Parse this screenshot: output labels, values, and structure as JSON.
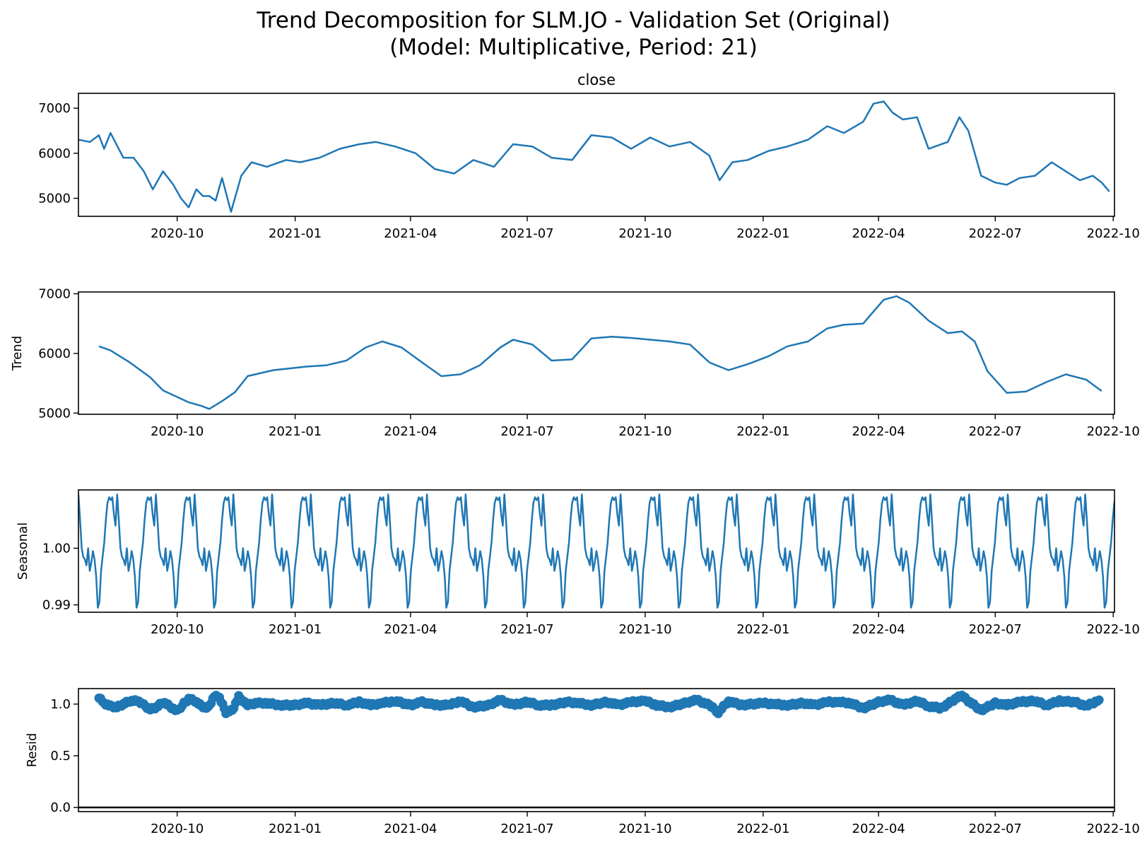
{
  "figure": {
    "title_line1": "Trend Decomposition for SLM.JO - Validation Set (Original)",
    "title_line2": "(Model: Multiplicative, Period: 21)"
  },
  "x_ticks": [
    "2020-10",
    "2021-01",
    "2021-04",
    "2021-07",
    "2021-10",
    "2022-01",
    "2022-04",
    "2022-07",
    "2022-10"
  ],
  "colors": {
    "line": "#1f77b4",
    "axis": "#000000",
    "zero_line": "#000000"
  },
  "chart_data": [
    {
      "type": "line",
      "name": "close-panel",
      "title": "close",
      "ylabel": "",
      "xlim": [
        "2020-07-16",
        "2022-10-02"
      ],
      "ylim": [
        4600,
        7330
      ],
      "yticks": [
        5000,
        6000,
        7000
      ],
      "series": [
        {
          "x": [
            "2020-07-16",
            "2020-07-25",
            "2020-08-01",
            "2020-08-05",
            "2020-08-10",
            "2020-08-20",
            "2020-08-28",
            "2020-09-05",
            "2020-09-12",
            "2020-09-20",
            "2020-09-28",
            "2020-10-04",
            "2020-10-10",
            "2020-10-16",
            "2020-10-21",
            "2020-10-26",
            "2020-10-31",
            "2020-11-05",
            "2020-11-12",
            "2020-11-20",
            "2020-11-28",
            "2020-12-10",
            "2020-12-25",
            "2021-01-05",
            "2021-01-20",
            "2021-02-05",
            "2021-02-20",
            "2021-03-05",
            "2021-03-20",
            "2021-04-05",
            "2021-04-20",
            "2021-05-05",
            "2021-05-20",
            "2021-06-05",
            "2021-06-20",
            "2021-07-05",
            "2021-07-20",
            "2021-08-05",
            "2021-08-20",
            "2021-09-05",
            "2021-09-20",
            "2021-10-05",
            "2021-10-20",
            "2021-11-05",
            "2021-11-20",
            "2021-11-28",
            "2021-12-08",
            "2021-12-20",
            "2022-01-05",
            "2022-01-20",
            "2022-02-05",
            "2022-02-20",
            "2022-03-05",
            "2022-03-20",
            "2022-03-28",
            "2022-04-05",
            "2022-04-12",
            "2022-04-20",
            "2022-05-01",
            "2022-05-10",
            "2022-05-25",
            "2022-06-03",
            "2022-06-10",
            "2022-06-20",
            "2022-07-01",
            "2022-07-10",
            "2022-07-20",
            "2022-08-01",
            "2022-08-14",
            "2022-08-25",
            "2022-09-05",
            "2022-09-15",
            "2022-09-22",
            "2022-09-28"
          ],
          "y": [
            6300,
            6250,
            6400,
            6100,
            6450,
            5900,
            5900,
            5600,
            5200,
            5600,
            5300,
            5000,
            4800,
            5200,
            5050,
            5050,
            4950,
            5450,
            4700,
            5500,
            5800,
            5700,
            5850,
            5800,
            5900,
            6100,
            6200,
            6250,
            6150,
            6000,
            5650,
            5550,
            5850,
            5700,
            6200,
            6150,
            5900,
            5850,
            6400,
            6350,
            6100,
            6350,
            6150,
            6250,
            5950,
            5400,
            5800,
            5850,
            6050,
            6150,
            6300,
            6600,
            6450,
            6700,
            7100,
            7150,
            6900,
            6750,
            6800,
            6100,
            6250,
            6800,
            6500,
            5500,
            5350,
            5300,
            5450,
            5500,
            5800,
            5600,
            5400,
            5500,
            5350,
            5150
          ]
        }
      ]
    },
    {
      "type": "line",
      "name": "trend-panel",
      "title": "",
      "ylabel": "Trend",
      "xlim": [
        "2020-07-16",
        "2022-10-02"
      ],
      "ylim": [
        4980,
        7030
      ],
      "yticks": [
        5000,
        6000,
        7000
      ],
      "series": [
        {
          "x": [
            "2020-08-01",
            "2020-08-10",
            "2020-08-25",
            "2020-09-10",
            "2020-09-20",
            "2020-10-01",
            "2020-10-10",
            "2020-10-20",
            "2020-10-26",
            "2020-11-05",
            "2020-11-15",
            "2020-11-25",
            "2020-12-15",
            "2021-01-10",
            "2021-01-25",
            "2021-02-10",
            "2021-02-25",
            "2021-03-10",
            "2021-03-25",
            "2021-04-10",
            "2021-04-25",
            "2021-05-10",
            "2021-05-25",
            "2021-06-10",
            "2021-06-20",
            "2021-07-05",
            "2021-07-20",
            "2021-08-05",
            "2021-08-20",
            "2021-09-05",
            "2021-09-20",
            "2021-10-05",
            "2021-10-20",
            "2021-11-05",
            "2021-11-20",
            "2021-12-05",
            "2021-12-20",
            "2022-01-05",
            "2022-01-20",
            "2022-02-05",
            "2022-02-20",
            "2022-03-05",
            "2022-03-20",
            "2022-04-05",
            "2022-04-15",
            "2022-04-25",
            "2022-05-10",
            "2022-05-25",
            "2022-06-05",
            "2022-06-15",
            "2022-06-25",
            "2022-07-10",
            "2022-07-25",
            "2022-08-10",
            "2022-08-25",
            "2022-09-10",
            "2022-09-22"
          ],
          "y": [
            6120,
            6050,
            5850,
            5600,
            5380,
            5270,
            5180,
            5120,
            5070,
            5200,
            5350,
            5620,
            5720,
            5780,
            5800,
            5880,
            6100,
            6200,
            6100,
            5850,
            5620,
            5650,
            5800,
            6100,
            6230,
            6150,
            5880,
            5900,
            6250,
            6280,
            6260,
            6230,
            6200,
            6150,
            5850,
            5720,
            5820,
            5950,
            6120,
            6200,
            6420,
            6480,
            6500,
            6900,
            6960,
            6850,
            6550,
            6340,
            6370,
            6200,
            5700,
            5340,
            5360,
            5520,
            5650,
            5560,
            5370
          ]
        }
      ]
    },
    {
      "type": "line",
      "name": "seasonal-panel",
      "title": "",
      "ylabel": "Seasonal",
      "xlim": [
        "2020-07-16",
        "2022-10-02"
      ],
      "ylim": [
        0.9887,
        1.0103
      ],
      "yticks": [
        0.99,
        1.0
      ],
      "yticklabels": [
        "0.99",
        "1.00"
      ],
      "period_days": 30.2,
      "pattern": [
        1.0095,
        1.005,
        1.0,
        0.9985,
        0.998,
        0.997,
        1.0,
        0.996,
        0.9975,
        0.9995,
        0.998,
        0.995,
        0.9895,
        0.9905,
        0.996,
        0.9985,
        1.001,
        1.005,
        1.008,
        1.009,
        1.0085,
        1.009,
        1.006,
        1.004
      ]
    },
    {
      "type": "scatter",
      "name": "resid-panel",
      "title": "",
      "ylabel": "Resid",
      "xlim": [
        "2020-07-16",
        "2022-10-02"
      ],
      "ylim": [
        -0.04,
        1.15
      ],
      "yticks": [
        0.0,
        0.5,
        1.0
      ],
      "yticklabels": [
        "0.0",
        "0.5",
        "1.0"
      ],
      "zero_line": 0.0,
      "series": [
        {
          "x": [
            "2020-08-01",
            "2020-08-05",
            "2020-08-10",
            "2020-08-15",
            "2020-08-20",
            "2020-08-25",
            "2020-09-01",
            "2020-09-05",
            "2020-09-10",
            "2020-09-15",
            "2020-09-20",
            "2020-09-25",
            "2020-10-01",
            "2020-10-05",
            "2020-10-10",
            "2020-10-15",
            "2020-10-20",
            "2020-10-25",
            "2020-10-30",
            "2020-11-03",
            "2020-11-08",
            "2020-11-13",
            "2020-11-18",
            "2020-11-25",
            "2020-12-01",
            "2020-12-10",
            "2020-12-20",
            "2021-01-01",
            "2021-01-10",
            "2021-01-20",
            "2021-02-01",
            "2021-02-10",
            "2021-02-20",
            "2021-03-01",
            "2021-03-10",
            "2021-03-20",
            "2021-04-01",
            "2021-04-10",
            "2021-04-20",
            "2021-05-01",
            "2021-05-10",
            "2021-05-20",
            "2021-06-01",
            "2021-06-10",
            "2021-06-20",
            "2021-07-01",
            "2021-07-10",
            "2021-07-20",
            "2021-08-01",
            "2021-08-10",
            "2021-08-20",
            "2021-09-01",
            "2021-09-10",
            "2021-09-20",
            "2021-10-01",
            "2021-10-10",
            "2021-10-20",
            "2021-11-01",
            "2021-11-10",
            "2021-11-20",
            "2021-11-27",
            "2021-12-05",
            "2021-12-15",
            "2022-01-01",
            "2022-01-10",
            "2022-01-20",
            "2022-02-01",
            "2022-02-10",
            "2022-02-20",
            "2022-03-01",
            "2022-03-10",
            "2022-03-20",
            "2022-04-01",
            "2022-04-10",
            "2022-04-20",
            "2022-05-01",
            "2022-05-10",
            "2022-05-20",
            "2022-06-01",
            "2022-06-05",
            "2022-06-10",
            "2022-06-20",
            "2022-07-01",
            "2022-07-10",
            "2022-07-20",
            "2022-08-01",
            "2022-08-10",
            "2022-08-20",
            "2022-09-01",
            "2022-09-10",
            "2022-09-20"
          ],
          "y": [
            1.07,
            1.01,
            0.98,
            0.97,
            1.0,
            1.03,
            1.03,
            0.99,
            0.95,
            0.97,
            1.02,
            0.98,
            0.93,
            0.99,
            1.05,
            1.03,
            0.98,
            0.96,
            1.08,
            1.06,
            0.92,
            0.94,
            1.07,
            0.99,
            1.01,
            1.01,
            0.99,
            0.99,
            1.01,
            0.99,
            1.01,
            0.99,
            1.02,
            0.99,
            1.01,
            1.03,
            0.99,
            1.02,
            0.99,
            0.99,
            1.03,
            0.97,
            0.99,
            1.04,
            0.99,
            1.02,
            0.99,
            0.99,
            1.02,
            1.01,
            0.99,
            1.02,
            0.99,
            1.02,
            1.03,
            0.99,
            0.97,
            1.01,
            1.04,
            0.99,
            0.92,
            1.03,
            0.99,
            1.01,
            1.0,
            0.99,
            1.01,
            0.99,
            1.02,
            1.02,
            1.01,
            0.96,
            1.02,
            1.04,
            0.99,
            1.03,
            0.98,
            0.96,
            1.06,
            1.08,
            1.03,
            0.94,
            1.01,
            0.99,
            1.02,
            1.03,
            0.99,
            1.03,
            1.02,
            0.98,
            1.04
          ]
        }
      ]
    }
  ]
}
